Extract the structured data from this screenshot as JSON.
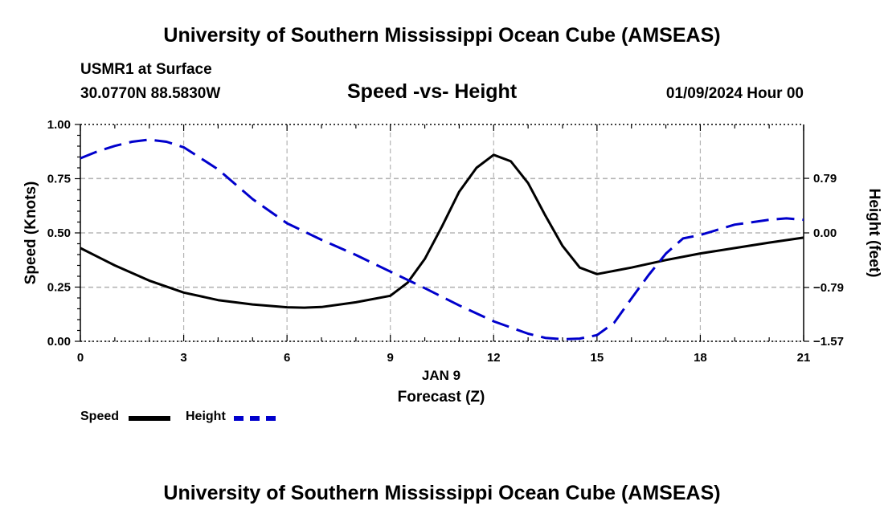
{
  "page": {
    "title_top": "University of Southern Mississippi Ocean Cube (AMSEAS)",
    "title_bottom": "University of Southern Mississippi Ocean Cube (AMSEAS)",
    "station": "USMR1 at Surface",
    "coords": "30.0770N  88.5830W",
    "date": "01/09/2024 Hour 00"
  },
  "colors": {
    "speed": "#000000",
    "height": "#0000cc",
    "grid": "#b4b4b4"
  },
  "chart_data": {
    "type": "line",
    "title": "Speed -vs- Height",
    "xlabel": "Forecast (Z)",
    "xlabel_date": "JAN 9",
    "ylabel": "Speed (Knots)",
    "ylabel_right": "Height (feet)",
    "xlim": [
      0,
      21
    ],
    "ylim": [
      0,
      1
    ],
    "ylim_right": [
      -1.57,
      1.57
    ],
    "x_ticks": [
      0,
      3,
      6,
      9,
      12,
      15,
      18,
      21
    ],
    "x_tick_labels": [
      "0",
      "3",
      "6",
      "9",
      "12",
      "15",
      "18",
      "21"
    ],
    "y_ticks": [
      0,
      0.25,
      0.5,
      0.75,
      1.0
    ],
    "y_tick_labels": [
      "0.00",
      "0.25",
      "0.50",
      "0.75",
      "1.00"
    ],
    "y_right_ticks": [
      -1.57,
      -0.79,
      0.0,
      0.79
    ],
    "y_right_tick_labels": [
      "−1.57",
      "−0.79",
      "0.00",
      "0.79"
    ],
    "grid": true,
    "legend": [
      {
        "label": "Speed",
        "style": "solid"
      },
      {
        "label": "Height",
        "style": "dashed"
      }
    ],
    "series": [
      {
        "name": "Speed",
        "axis": "left",
        "style": "solid",
        "x": [
          0,
          1,
          2,
          3,
          4,
          5,
          6,
          6.5,
          7,
          8,
          9,
          9.5,
          10,
          10.5,
          11,
          11.5,
          12,
          12.5,
          13,
          13.5,
          14,
          14.5,
          15,
          16,
          17,
          18,
          19,
          20,
          21
        ],
        "values": [
          0.43,
          0.35,
          0.28,
          0.225,
          0.19,
          0.17,
          0.157,
          0.155,
          0.158,
          0.18,
          0.21,
          0.27,
          0.38,
          0.53,
          0.69,
          0.8,
          0.86,
          0.83,
          0.73,
          0.58,
          0.44,
          0.34,
          0.31,
          0.34,
          0.375,
          0.405,
          0.43,
          0.455,
          0.478
        ]
      },
      {
        "name": "Height",
        "axis": "right",
        "style": "dashed",
        "x": [
          0,
          0.5,
          1,
          1.5,
          2,
          2.5,
          3,
          4,
          5,
          6,
          7,
          8,
          9,
          10,
          11,
          12,
          13,
          13.5,
          14,
          14.5,
          15,
          15.5,
          16,
          16.5,
          17,
          17.5,
          18,
          19,
          20,
          20.5,
          21
        ],
        "values": [
          1.08,
          1.18,
          1.26,
          1.32,
          1.35,
          1.32,
          1.24,
          0.92,
          0.49,
          0.14,
          -0.1,
          -0.32,
          -0.56,
          -0.8,
          -1.05,
          -1.28,
          -1.46,
          -1.52,
          -1.54,
          -1.53,
          -1.48,
          -1.3,
          -0.95,
          -0.61,
          -0.3,
          -0.08,
          -0.03,
          0.12,
          0.19,
          0.21,
          0.19
        ]
      }
    ]
  }
}
